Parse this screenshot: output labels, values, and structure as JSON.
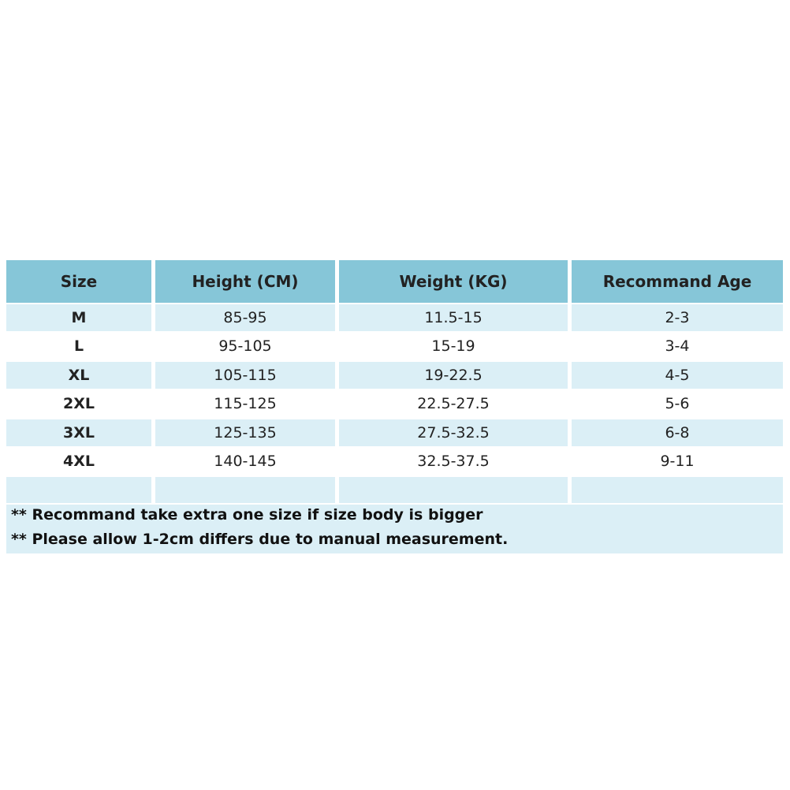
{
  "table": {
    "header": [
      "Size",
      "Height (CM)",
      "Weight (KG)",
      "Recommand Age"
    ],
    "rows": [
      [
        "M",
        "85-95",
        "11.5-15",
        "2-3"
      ],
      [
        "L",
        "95-105",
        "15-19",
        "3-4"
      ],
      [
        "XL",
        "105-115",
        "19-22.5",
        "4-5"
      ],
      [
        "2XL",
        "115-125",
        "22.5-27.5",
        "5-6"
      ],
      [
        "3XL",
        "125-135",
        "27.5-32.5",
        "6-8"
      ],
      [
        "4XL",
        "140-145",
        "32.5-37.5",
        "9-11"
      ]
    ]
  },
  "notes": [
    "** Recommand take extra one size if size body is bigger",
    "** Please allow 1-2cm differs due to manual measurement."
  ]
}
